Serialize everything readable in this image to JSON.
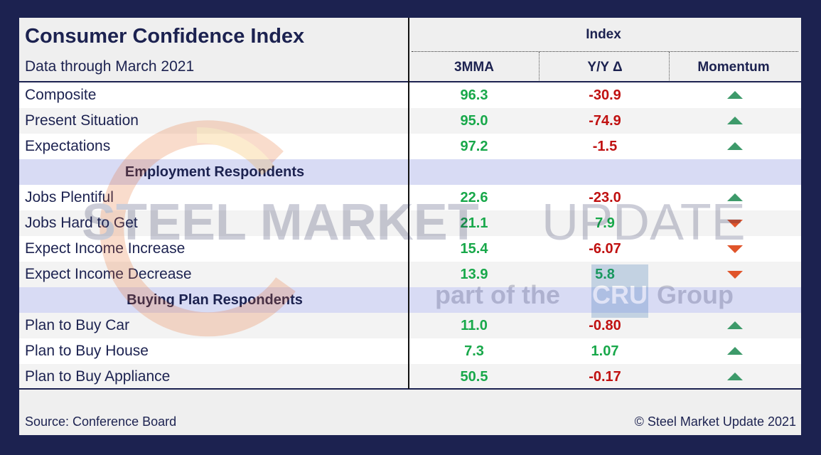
{
  "chart_data": {
    "type": "table",
    "title": "Consumer Confidence Index",
    "subtitle": "Data through March 2021",
    "group_header": "Index",
    "columns": [
      "3MMA",
      "Y/Y Δ",
      "Momentum"
    ],
    "rows": [
      {
        "kind": "data",
        "label": "Composite",
        "mma": "96.3",
        "yoy": "-30.9",
        "momentum": "up"
      },
      {
        "kind": "data",
        "label": "Present Situation",
        "mma": "95.0",
        "yoy": "-74.9",
        "momentum": "up"
      },
      {
        "kind": "data",
        "label": "Expectations",
        "mma": "97.2",
        "yoy": "-1.5",
        "momentum": "up"
      },
      {
        "kind": "section",
        "label": "Employment Respondents"
      },
      {
        "kind": "data",
        "label": "Jobs Plentiful",
        "mma": "22.6",
        "yoy": "-23.0",
        "momentum": "up"
      },
      {
        "kind": "data",
        "label": "Jobs Hard to Get",
        "mma": "21.1",
        "yoy": "7.9",
        "momentum": "down"
      },
      {
        "kind": "data",
        "label": "Expect Income Increase",
        "mma": "15.4",
        "yoy": "-6.07",
        "momentum": "down"
      },
      {
        "kind": "data",
        "label": "Expect Income Decrease",
        "mma": "13.9",
        "yoy": "5.8",
        "momentum": "down"
      },
      {
        "kind": "section",
        "label": "Buying Plan Respondents"
      },
      {
        "kind": "data",
        "label": "Plan to Buy Car",
        "mma": "11.0",
        "yoy": "-0.80",
        "momentum": "up"
      },
      {
        "kind": "data",
        "label": "Plan to Buy House",
        "mma": "7.3",
        "yoy": "1.07",
        "momentum": "up"
      },
      {
        "kind": "data",
        "label": "Plan to Buy Appliance",
        "mma": "50.5",
        "yoy": "-0.17",
        "momentum": "up"
      }
    ]
  },
  "footer": {
    "source": "Source: Conference Board",
    "copyright": "© Steel Market Update 2021"
  },
  "watermark": {
    "line1_bold": "STEEL MARKET",
    "line1_light": "UPDATE",
    "line2_a": "part of the",
    "line2_logo": "CRU",
    "line2_b": "Group"
  },
  "colors": {
    "frame": "#1c2250",
    "text": "#1c2250",
    "positive": "#18a84a",
    "negative": "#c01111",
    "section_band": "#d8dbf4",
    "arrow_up": "#3d9a6a",
    "arrow_down": "#e0542a"
  }
}
